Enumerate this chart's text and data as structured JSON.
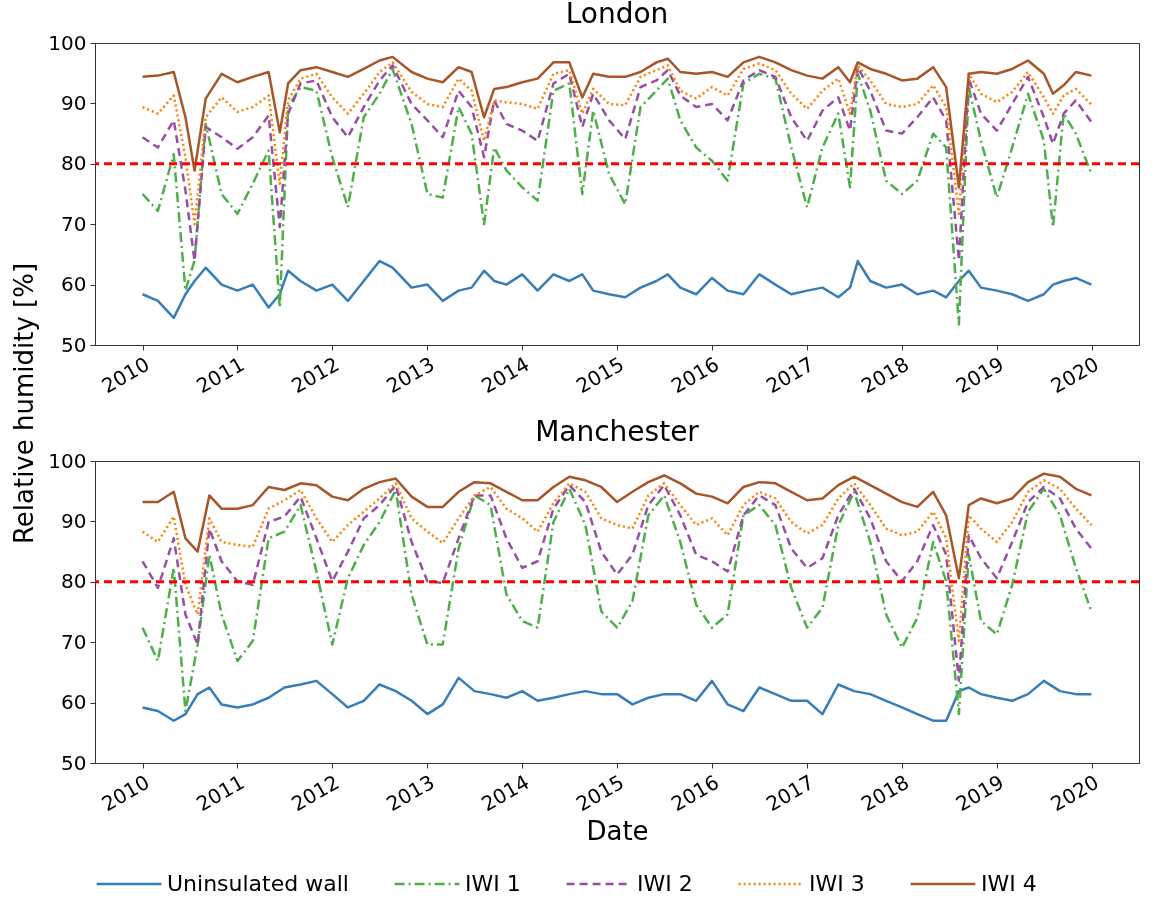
{
  "chart_data": [
    {
      "type": "line",
      "title": "London",
      "ylabel": "Relative humidity [%]",
      "legend": "bottom",
      "grid": false,
      "xlim": [
        "2009-07-02",
        "2020-07-01"
      ],
      "xticks": [
        "2010",
        "2011",
        "2012",
        "2013",
        "2014",
        "2015",
        "2016",
        "2017",
        "2018",
        "2019",
        "2020"
      ],
      "ylim": [
        50,
        100
      ],
      "yticks": [
        50,
        60,
        70,
        80,
        90,
        100
      ],
      "ref_lines": [
        {
          "axis": "y",
          "value": 80,
          "color": "#ff0000",
          "line_style": "dashed"
        }
      ],
      "x": [
        "2010-01-01",
        "2010-03-01",
        "2010-05-01",
        "2010-06-15",
        "2010-07-20",
        "2010-09-01",
        "2010-11-01",
        "2011-01-01",
        "2011-03-01",
        "2011-05-01",
        "2011-06-13",
        "2011-07-15",
        "2011-09-01",
        "2011-11-01",
        "2012-01-01",
        "2012-03-01",
        "2012-05-01",
        "2012-07-01",
        "2012-08-20",
        "2012-11-01",
        "2013-01-01",
        "2013-03-01",
        "2013-05-01",
        "2013-06-20",
        "2013-08-07",
        "2013-09-15",
        "2013-11-01",
        "2014-01-01",
        "2014-03-01",
        "2014-05-01",
        "2014-07-01",
        "2014-08-20",
        "2014-10-01",
        "2014-12-01",
        "2015-02-01",
        "2015-04-01",
        "2015-06-01",
        "2015-07-15",
        "2015-09-01",
        "2015-11-01",
        "2016-01-01",
        "2016-03-01",
        "2016-05-01",
        "2016-07-01",
        "2016-09-01",
        "2016-11-01",
        "2017-01-01",
        "2017-03-01",
        "2017-05-01",
        "2017-06-15",
        "2017-07-15",
        "2017-09-01",
        "2017-11-01",
        "2018-01-01",
        "2018-03-01",
        "2018-05-01",
        "2018-06-20",
        "2018-08-08",
        "2018-09-15",
        "2018-11-01",
        "2019-01-01",
        "2019-03-01",
        "2019-05-01",
        "2019-07-01",
        "2019-08-05",
        "2019-09-15",
        "2019-11-01",
        "2019-12-31"
      ],
      "series": [
        {
          "name": "Uninsulated wall",
          "color": "#377eb8",
          "line_style": "solid",
          "values": [
            58.4,
            57.3,
            54.5,
            58.4,
            60.6,
            62.8,
            60,
            59,
            60,
            56.2,
            58.4,
            62.3,
            60.6,
            59,
            60,
            57.3,
            60.6,
            63.9,
            62.8,
            59.5,
            60,
            57.3,
            59,
            59.5,
            62.3,
            60.6,
            60,
            61.7,
            59,
            61.7,
            60.6,
            61.7,
            59,
            58.4,
            57.9,
            59.5,
            60.6,
            61.7,
            59.5,
            58.4,
            61.1,
            59,
            58.4,
            61.7,
            60,
            58.4,
            59,
            59.5,
            57.9,
            59.5,
            63.9,
            60.6,
            59.5,
            60,
            58.4,
            59,
            57.9,
            60.6,
            62.3,
            59.5,
            59,
            58.4,
            57.3,
            58.4,
            60,
            60.6,
            61.1,
            60
          ]
        },
        {
          "name": "IWI 1",
          "color": "#4daf4a",
          "line_style": "dashdot",
          "values": [
            75,
            72.2,
            81.6,
            59,
            64,
            86.6,
            75,
            71.7,
            76.7,
            82.2,
            56.2,
            89.4,
            92.7,
            92.1,
            81.1,
            72.8,
            87.7,
            91.6,
            95.7,
            86.6,
            75,
            74.4,
            89.4,
            85,
            70,
            82.7,
            78.9,
            76.1,
            73.9,
            92.1,
            93.3,
            75,
            88.8,
            78.3,
            73.3,
            89.4,
            92.1,
            94.1,
            87.2,
            82.7,
            80.5,
            77.2,
            93.3,
            94.9,
            94.1,
            82.7,
            72.8,
            82.7,
            88.3,
            76.1,
            94.9,
            88.8,
            77.2,
            75,
            77.2,
            85,
            82.7,
            53.4,
            92.7,
            83.8,
            74.4,
            82.7,
            91.6,
            83.8,
            69.5,
            88.3,
            85,
            78.3
          ]
        },
        {
          "name": "IWI 2",
          "color": "#984ea3",
          "line_style": "dashed",
          "values": [
            84.4,
            82.7,
            87.2,
            75.6,
            63.9,
            86.1,
            84.4,
            82.5,
            84.4,
            88,
            69.5,
            88.3,
            93.3,
            93.8,
            87.7,
            84.4,
            89.4,
            93.8,
            96.3,
            89.9,
            87.2,
            84.4,
            92.1,
            89.4,
            81.1,
            90.5,
            86.6,
            85.5,
            83.8,
            93.3,
            94.9,
            86.1,
            91.6,
            87.2,
            84.1,
            92.7,
            93.8,
            95.5,
            91.3,
            89.4,
            89.9,
            87.2,
            93.8,
            95.5,
            94.4,
            87.7,
            83.8,
            88.8,
            91,
            85.5,
            96,
            92.1,
            85.5,
            85,
            87.7,
            91,
            87.2,
            64,
            94.1,
            88.3,
            85.5,
            89.9,
            94.4,
            87.7,
            83.3,
            88.3,
            90.5,
            86.9
          ]
        },
        {
          "name": "IWI 3",
          "color": "#ff7f00",
          "line_style": "dotted",
          "values": [
            89.4,
            88.3,
            91.3,
            81.1,
            70,
            87.7,
            91,
            88.6,
            89.4,
            91.3,
            76.7,
            90.5,
            94.1,
            94.9,
            91,
            88.3,
            91.6,
            95.2,
            96.8,
            91.9,
            89.9,
            89.4,
            94.1,
            92.1,
            83.8,
            90.5,
            90.2,
            89.9,
            89.1,
            94.9,
            95.5,
            88.3,
            92.4,
            89.9,
            89.7,
            94.4,
            95.5,
            96.3,
            92.1,
            90.8,
            92.7,
            91.3,
            95.7,
            96.6,
            95.5,
            91.6,
            89.1,
            92.1,
            94.1,
            88.3,
            96.3,
            93.8,
            89.9,
            89.4,
            89.9,
            93,
            89.4,
            71.7,
            94.9,
            91.6,
            90.2,
            91.9,
            95.2,
            91,
            88.3,
            91.3,
            92.4,
            89.8
          ]
        },
        {
          "name": "IWI 4",
          "color": "#a65628",
          "line_style": "solid",
          "values": [
            94.4,
            94.6,
            95.2,
            87.7,
            78.9,
            90.8,
            94.9,
            93.5,
            94.4,
            95.2,
            85.2,
            93.3,
            95.5,
            96,
            95.2,
            94.4,
            95.7,
            97.1,
            97.7,
            95.2,
            94.1,
            93.5,
            96,
            95.2,
            87.7,
            92.4,
            92.7,
            93.5,
            94.1,
            96.8,
            96.8,
            91,
            94.9,
            94.4,
            94.4,
            95.2,
            96.8,
            97.4,
            95.2,
            94.9,
            95.2,
            94.4,
            96.8,
            97.7,
            96.8,
            95.5,
            94.6,
            94.1,
            96,
            93.5,
            96.8,
            95.7,
            94.9,
            93.8,
            94.1,
            96,
            92.7,
            76.1,
            94.9,
            95.2,
            94.9,
            95.7,
            97.1,
            94.9,
            91.6,
            93,
            95.2,
            94.6
          ]
        }
      ]
    },
    {
      "type": "line",
      "title": "Manchester",
      "xlabel": "Date",
      "legend": "bottom",
      "grid": false,
      "xlim": [
        "2009-07-02",
        "2020-07-01"
      ],
      "xticks": [
        "2010",
        "2011",
        "2012",
        "2013",
        "2014",
        "2015",
        "2016",
        "2017",
        "2018",
        "2019",
        "2020"
      ],
      "ylim": [
        50,
        100
      ],
      "yticks": [
        50,
        60,
        70,
        80,
        90,
        100
      ],
      "ref_lines": [
        {
          "axis": "y",
          "value": 80,
          "color": "#ff0000",
          "line_style": "dashed"
        }
      ],
      "x": [
        "2010-01-01",
        "2010-03-01",
        "2010-05-01",
        "2010-06-15",
        "2010-08-01",
        "2010-09-15",
        "2010-11-01",
        "2011-01-01",
        "2011-03-01",
        "2011-05-01",
        "2011-07-01",
        "2011-09-01",
        "2011-11-01",
        "2012-01-01",
        "2012-03-01",
        "2012-05-01",
        "2012-07-01",
        "2012-09-01",
        "2012-11-01",
        "2013-01-01",
        "2013-03-01",
        "2013-05-01",
        "2013-07-01",
        "2013-09-01",
        "2013-11-01",
        "2014-01-01",
        "2014-03-01",
        "2014-05-01",
        "2014-07-01",
        "2014-09-01",
        "2014-11-01",
        "2015-01-01",
        "2015-03-01",
        "2015-05-01",
        "2015-07-01",
        "2015-09-01",
        "2015-11-01",
        "2016-01-01",
        "2016-03-01",
        "2016-05-01",
        "2016-07-01",
        "2016-09-01",
        "2016-11-01",
        "2017-01-01",
        "2017-03-01",
        "2017-05-01",
        "2017-07-01",
        "2017-09-01",
        "2017-11-01",
        "2018-01-01",
        "2018-03-01",
        "2018-05-01",
        "2018-06-20",
        "2018-08-08",
        "2018-09-15",
        "2018-11-01",
        "2019-01-01",
        "2019-03-01",
        "2019-05-01",
        "2019-07-01",
        "2019-09-01",
        "2019-11-01",
        "2019-12-31"
      ],
      "series": [
        {
          "name": "Uninsulated wall",
          "color": "#377eb8",
          "line_style": "solid",
          "values": [
            59.2,
            58.6,
            57,
            58.1,
            61.4,
            62.5,
            59.7,
            59.2,
            59.7,
            60.8,
            62.5,
            63,
            63.6,
            61.4,
            59.2,
            60.3,
            63,
            61.9,
            60.3,
            58.1,
            59.7,
            64.1,
            61.9,
            61.4,
            60.8,
            61.9,
            60.3,
            60.8,
            61.4,
            61.9,
            61.4,
            61.4,
            59.7,
            60.8,
            61.4,
            61.4,
            60.3,
            63.6,
            59.7,
            58.6,
            62.5,
            61.4,
            60.3,
            60.3,
            58.1,
            63,
            61.9,
            61.4,
            60.3,
            59.2,
            58.1,
            57,
            57,
            61.9,
            62.5,
            61.4,
            60.8,
            60.3,
            61.4,
            63.6,
            61.9,
            61.4,
            61.4
          ]
        },
        {
          "name": "IWI 1",
          "color": "#4daf4a",
          "line_style": "dashdot",
          "values": [
            72.4,
            66.9,
            82.3,
            58.6,
            69.6,
            84.5,
            74.6,
            66.9,
            70.2,
            87.2,
            88.3,
            92.7,
            81.7,
            69.6,
            80.6,
            86.1,
            89.9,
            95.2,
            77.9,
            69.6,
            69.6,
            85.5,
            94.3,
            92.7,
            77.9,
            73.5,
            72.4,
            89.9,
            95.4,
            89.4,
            75.1,
            72.4,
            76.8,
            91,
            94.3,
            86.6,
            76.2,
            72.4,
            74.6,
            91,
            92.7,
            89.4,
            79,
            72.4,
            75.7,
            89.4,
            94.9,
            86.6,
            74.6,
            69.1,
            74,
            86.6,
            80.1,
            58.1,
            84.5,
            73.5,
            71.3,
            79.5,
            91.6,
            95.4,
            91,
            82.3,
            75.1
          ]
        },
        {
          "name": "IWI 2",
          "color": "#984ea3",
          "line_style": "dashed",
          "values": [
            83.4,
            79,
            87.2,
            74.6,
            69.6,
            88.8,
            83.4,
            80.1,
            79.5,
            89.9,
            90.8,
            94.1,
            87.2,
            80.1,
            85,
            90.5,
            92.7,
            96,
            86.6,
            80.1,
            79.8,
            87.2,
            94.3,
            94.3,
            87.2,
            82.3,
            83.4,
            92.1,
            96,
            93.2,
            85,
            81.2,
            84.5,
            92.7,
            96,
            91,
            84.5,
            83.4,
            81.7,
            91,
            94.3,
            92.7,
            85.5,
            82.3,
            83.9,
            91,
            95.4,
            90.5,
            83.4,
            80.1,
            83.4,
            89.4,
            84.5,
            63.6,
            87.7,
            83.9,
            80.6,
            86.6,
            93.2,
            95.7,
            93.8,
            88.8,
            85.5
          ]
        },
        {
          "name": "IWI 3",
          "color": "#ff7f00",
          "line_style": "dotted",
          "values": [
            88.3,
            86.6,
            90.8,
            79.5,
            74.6,
            90.5,
            86.6,
            86.1,
            85.8,
            92.1,
            93.5,
            95.2,
            90.5,
            86.6,
            89.4,
            91.6,
            93.8,
            96.3,
            90.5,
            88.3,
            86.4,
            90.5,
            94.3,
            95.7,
            92.1,
            90.5,
            88.3,
            93,
            96.3,
            94.9,
            90.5,
            89.4,
            88.8,
            94.3,
            96.3,
            92.7,
            89.4,
            90.5,
            87.7,
            92.7,
            94.9,
            93.8,
            89.9,
            88,
            89.4,
            93.8,
            96.3,
            92.7,
            88.8,
            87.7,
            88.3,
            91.6,
            87.2,
            70.2,
            91,
            88.8,
            86.6,
            89.9,
            94.9,
            96.8,
            95.4,
            92.1,
            89.4
          ]
        },
        {
          "name": "IWI 4",
          "color": "#a65628",
          "line_style": "solid",
          "values": [
            93.2,
            93.2,
            94.9,
            87.2,
            85,
            94.3,
            92.1,
            92.1,
            92.7,
            95.7,
            95.2,
            96.3,
            96,
            94.1,
            93.5,
            95.4,
            96.5,
            97.1,
            94.1,
            92.4,
            92.4,
            94.9,
            96.5,
            96.3,
            94.9,
            93.5,
            93.5,
            95.7,
            97.4,
            96.8,
            95.7,
            93.2,
            94.9,
            96.5,
            97.6,
            96.3,
            94.6,
            94.1,
            93,
            95.7,
            96.5,
            96.3,
            94.9,
            93.5,
            93.8,
            96,
            97.4,
            96,
            94.6,
            93.2,
            92.4,
            94.9,
            91,
            80.6,
            92.7,
            93.8,
            93,
            93.8,
            96.5,
            97.9,
            97.4,
            95.4,
            94.3
          ]
        }
      ]
    }
  ]
}
